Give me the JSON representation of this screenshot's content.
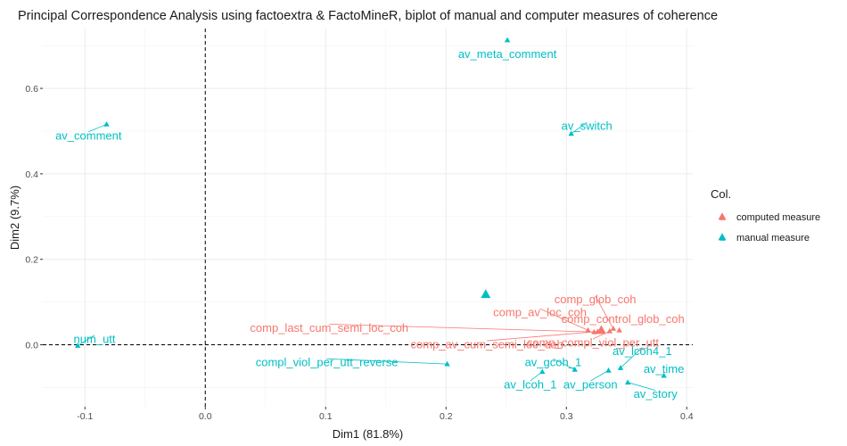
{
  "chart_data": {
    "type": "scatter",
    "title": "Principal Correspondence Analysis using factoextra & FactoMineR, biplot of manual and computer measures of coherence",
    "xlabel": "Dim1 (81.8%)",
    "ylabel": "Dim2 (9.7%)",
    "xlim": [
      -0.135,
      0.405
    ],
    "ylim": [
      -0.145,
      0.74
    ],
    "x_ticks": [
      -0.1,
      0.0,
      0.1,
      0.2,
      0.3,
      0.4
    ],
    "x_tick_labels": [
      "-0.1",
      "0.0",
      "0.1",
      "0.2",
      "0.3",
      "0.4"
    ],
    "y_ticks": [
      0.0,
      0.2,
      0.4,
      0.6
    ],
    "y_tick_labels": [
      "0.0",
      "0.2",
      "0.4",
      "0.6"
    ],
    "grid": true,
    "reference_lines": {
      "x": 0,
      "y": 0
    },
    "legend": {
      "title": "Col.",
      "placement": "right",
      "entries": [
        {
          "label": "computed measure",
          "color": "#F8766D"
        },
        {
          "label": "manual measure",
          "color": "#00BFC4"
        }
      ]
    },
    "series": [
      {
        "name": "computed measure",
        "color": "#F8766D",
        "points": [
          {
            "label": "comp_glob_coh",
            "x": 0.339,
            "y": 0.038,
            "lx": 0.324,
            "ly": 0.106
          },
          {
            "label": "comp_av_loc_coh",
            "x": 0.318,
            "y": 0.034,
            "lx": 0.278,
            "ly": 0.076
          },
          {
            "label": "comp_control_glob_coh",
            "x": 0.344,
            "y": 0.034,
            "lx": 0.347,
            "ly": 0.061
          },
          {
            "label": "comp_last_cum_semi_loc_coh",
            "x": 0.323,
            "y": 0.03,
            "lx": 0.103,
            "ly": 0.04
          },
          {
            "label": "comp_av_cum_semi_loc_coh",
            "x": 0.326,
            "y": 0.031,
            "lx": 0.234,
            "ly": 0.001
          },
          {
            "label": "comp_compl_viol_per_utt",
            "x": 0.336,
            "y": 0.032,
            "lx": 0.322,
            "ly": 0.005
          }
        ],
        "centroid": {
          "x": 0.329,
          "y": 0.034
        }
      },
      {
        "name": "manual measure",
        "color": "#00BFC4",
        "points": [
          {
            "label": "av_meta_comment",
            "x": 0.251,
            "y": 0.713,
            "lx": 0.251,
            "ly": 0.681
          },
          {
            "label": "av_comment",
            "x": -0.082,
            "y": 0.516,
            "lx": -0.097,
            "ly": 0.49
          },
          {
            "label": "av_switch",
            "x": 0.304,
            "y": 0.494,
            "lx": 0.317,
            "ly": 0.512
          },
          {
            "label": "num_utt",
            "x": -0.106,
            "y": -0.002,
            "lx": -0.092,
            "ly": 0.014
          },
          {
            "label": "compl_viol_per_utt_reverse",
            "x": 0.201,
            "y": -0.045,
            "lx": 0.101,
            "ly": -0.041
          },
          {
            "label": "av_gcoh_1",
            "x": 0.307,
            "y": -0.058,
            "lx": 0.289,
            "ly": -0.041
          },
          {
            "label": "av_lcoh4_1",
            "x": 0.345,
            "y": -0.054,
            "lx": 0.363,
            "ly": -0.015
          },
          {
            "label": "av_time",
            "x": 0.381,
            "y": -0.072,
            "lx": 0.381,
            "ly": -0.056
          },
          {
            "label": "av_lcoh_1",
            "x": 0.28,
            "y": -0.063,
            "lx": 0.27,
            "ly": -0.093
          },
          {
            "label": "av_person",
            "x": 0.335,
            "y": -0.06,
            "lx": 0.32,
            "ly": -0.093
          },
          {
            "label": "av_story",
            "x": 0.351,
            "y": -0.088,
            "lx": 0.374,
            "ly": -0.115
          }
        ],
        "centroid": {
          "x": 0.233,
          "y": 0.118
        }
      }
    ]
  }
}
